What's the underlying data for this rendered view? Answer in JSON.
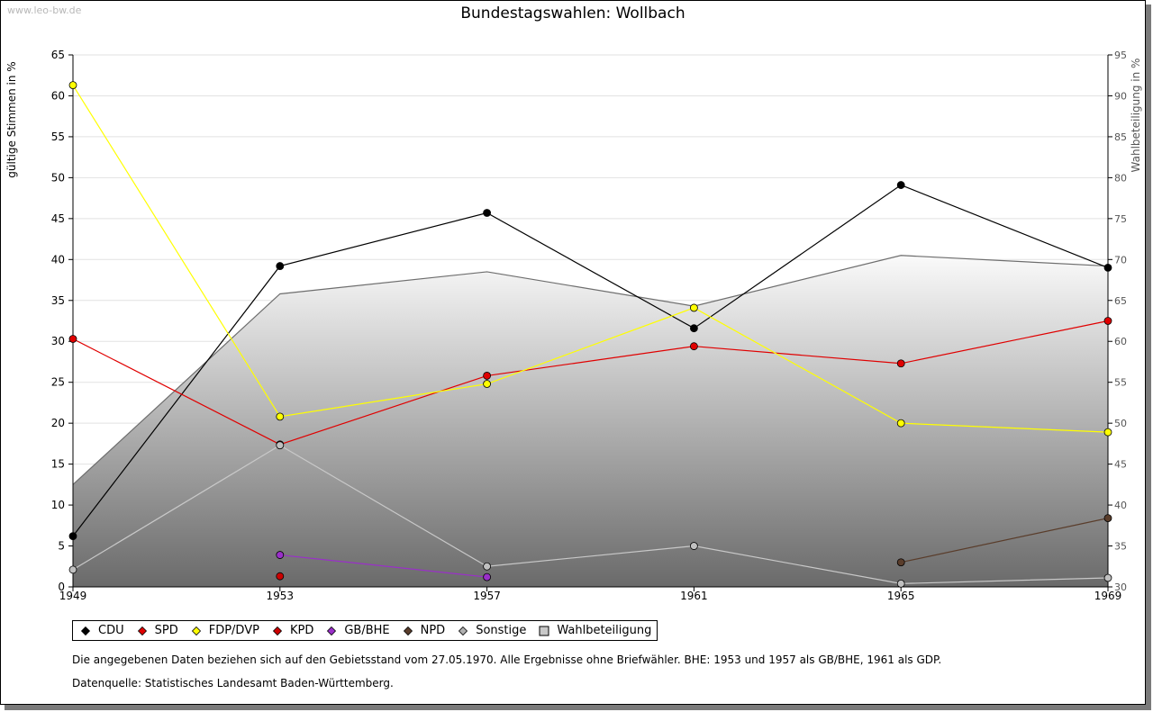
{
  "watermark": "www.leo-bw.de",
  "note": "Die angegebenen Daten beziehen sich auf den Gebietsstand vom 27.05.1970. Alle Ergebnisse ohne Briefwähler. BHE: 1953 und 1957 als GB/BHE, 1961 als GDP.",
  "source": "Datenquelle: Statistisches Landesamt Baden-Württemberg.",
  "chart_data": {
    "type": "line",
    "title": "Bundestagswahlen: Wollbach",
    "ylabel": "gültige Stimmen in %",
    "y2label": "Wahlbeteiligung in %",
    "xlabel": "",
    "categories": [
      "1949",
      "1953",
      "1957",
      "1961",
      "1965",
      "1969"
    ],
    "ylim": [
      0,
      65
    ],
    "yticks": [
      0,
      5,
      10,
      15,
      20,
      25,
      30,
      35,
      40,
      45,
      50,
      55,
      60,
      65
    ],
    "y2lim": [
      30,
      95
    ],
    "y2ticks": [
      30,
      35,
      40,
      45,
      50,
      55,
      60,
      65,
      70,
      75,
      80,
      85,
      90,
      95
    ],
    "grid": true,
    "legend_position": "bottom",
    "area": {
      "name": "Wahlbeteiligung",
      "axis": "right",
      "values": [
        42.5,
        65.8,
        68.5,
        64.3,
        70.5,
        69.2
      ]
    },
    "series": [
      {
        "name": "CDU",
        "color": "#000000",
        "marker": "#000000",
        "values": [
          6.2,
          39.2,
          45.7,
          31.6,
          49.1,
          39.0
        ]
      },
      {
        "name": "SPD",
        "color": "#e00000",
        "marker": "#e00000",
        "values": [
          30.3,
          17.4,
          25.8,
          29.4,
          27.3,
          32.5
        ]
      },
      {
        "name": "FDP/DVP",
        "color": "#ffff00",
        "marker": "#ffff00",
        "values": [
          61.3,
          20.8,
          24.8,
          34.1,
          20.0,
          18.9
        ]
      },
      {
        "name": "KPD",
        "color": "#cc0000",
        "marker": "#cc0000",
        "values": [
          null,
          1.3,
          null,
          null,
          null,
          null
        ]
      },
      {
        "name": "GB/BHE",
        "color": "#9a2fc9",
        "marker": "#9a2fc9",
        "values": [
          null,
          3.9,
          1.2,
          null,
          null,
          null
        ]
      },
      {
        "name": "NPD",
        "color": "#5a3d2b",
        "marker": "#5a3d2b",
        "values": [
          null,
          null,
          null,
          null,
          3.0,
          8.4
        ]
      },
      {
        "name": "Sonstige",
        "color": "#c8c8c8",
        "marker": "#c0c0c0",
        "values": [
          2.1,
          17.3,
          2.5,
          5.0,
          0.4,
          1.1
        ]
      }
    ],
    "legend": [
      {
        "label": "CDU",
        "color": "#000000",
        "shape": "diamond"
      },
      {
        "label": "SPD",
        "color": "#e00000",
        "shape": "diamond"
      },
      {
        "label": "FDP/DVP",
        "color": "#ffff00",
        "shape": "diamond"
      },
      {
        "label": "KPD",
        "color": "#cc0000",
        "shape": "diamond"
      },
      {
        "label": "GB/BHE",
        "color": "#9a2fc9",
        "shape": "diamond"
      },
      {
        "label": "NPD",
        "color": "#5a3d2b",
        "shape": "diamond"
      },
      {
        "label": "Sonstige",
        "color": "#b0b0b0",
        "shape": "diamond"
      },
      {
        "label": "Wahlbeteiligung",
        "color": "#c8c8c8",
        "shape": "square"
      }
    ]
  }
}
